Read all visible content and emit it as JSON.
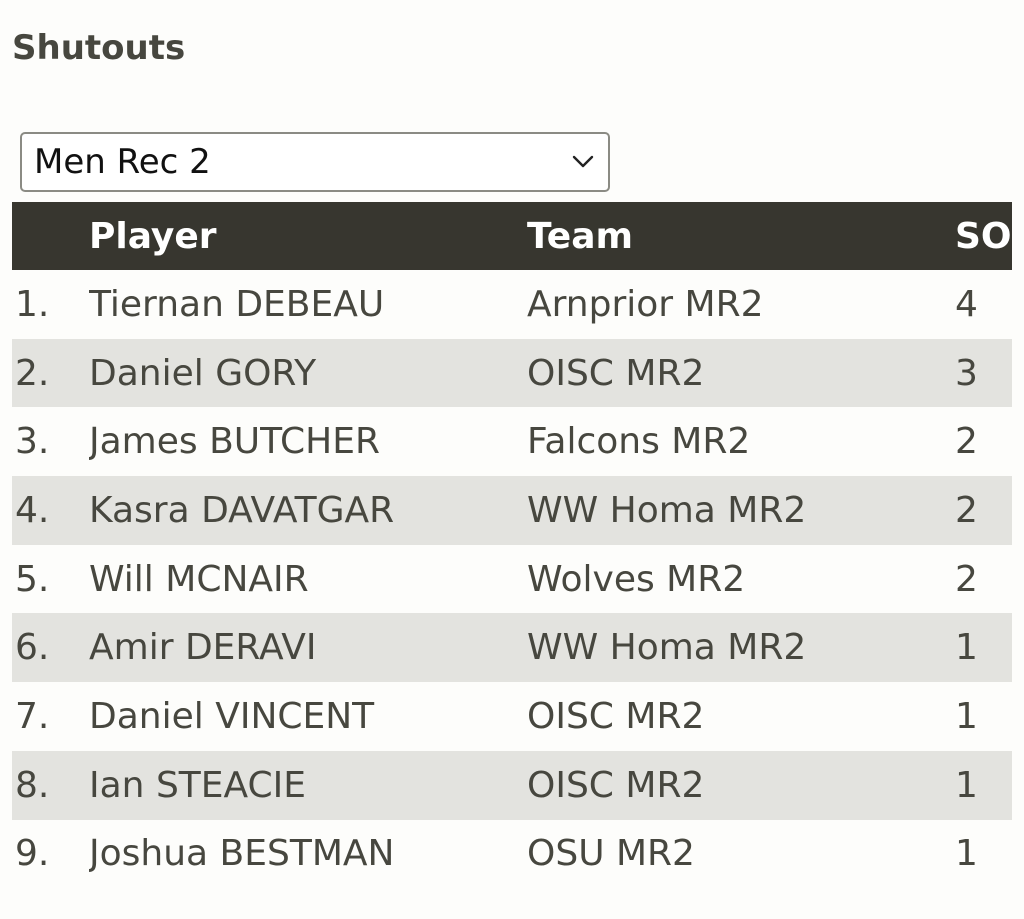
{
  "page": {
    "title": "Shutouts"
  },
  "filter": {
    "selected": "Men Rec 2"
  },
  "table": {
    "headers": {
      "rank": "",
      "player": "Player",
      "team": "Team",
      "so": "SO"
    },
    "rows": [
      {
        "rank": "1.",
        "player": "Tiernan DEBEAU",
        "team": "Arnprior MR2",
        "so": "4"
      },
      {
        "rank": "2.",
        "player": "Daniel GORY",
        "team": "OISC MR2",
        "so": "3"
      },
      {
        "rank": "3.",
        "player": "James BUTCHER",
        "team": "Falcons MR2",
        "so": "2"
      },
      {
        "rank": "4.",
        "player": "Kasra DAVATGAR",
        "team": "WW Homa MR2",
        "so": "2"
      },
      {
        "rank": "5.",
        "player": "Will MCNAIR",
        "team": "Wolves MR2",
        "so": "2"
      },
      {
        "rank": "6.",
        "player": "Amir DERAVI",
        "team": "WW Homa MR2",
        "so": "1"
      },
      {
        "rank": "7.",
        "player": "Daniel VINCENT",
        "team": "OISC MR2",
        "so": "1"
      },
      {
        "rank": "8.",
        "player": "Ian STEACIE",
        "team": "OISC MR2",
        "so": "1"
      },
      {
        "rank": "9.",
        "player": "Joshua BESTMAN",
        "team": "OSU MR2",
        "so": "1"
      }
    ]
  },
  "colors": {
    "header_bg": "#37362f",
    "stripe_bg": "#e3e3df",
    "text": "#47473f"
  },
  "icons": {
    "select_toggle": "chevron-down-icon"
  }
}
